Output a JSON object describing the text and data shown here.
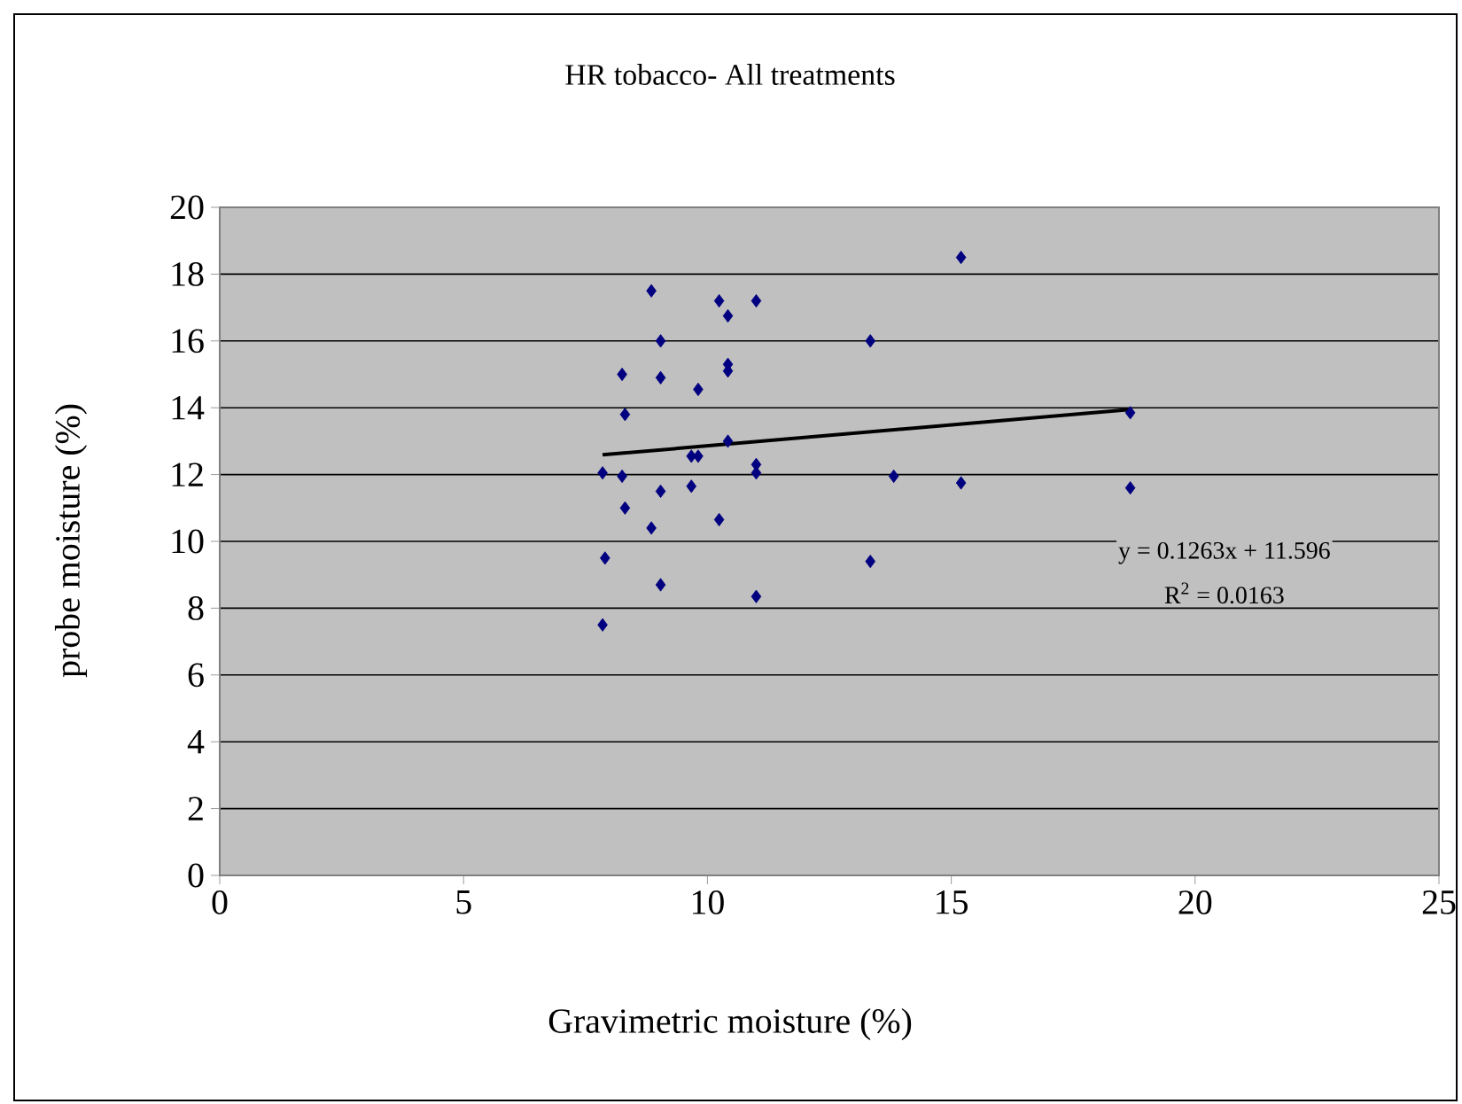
{
  "chart_data": {
    "type": "scatter",
    "title": "HR tobacco- All treatments",
    "xlabel": "Gravimetric moisture (%)",
    "ylabel": "probe moisture (%)",
    "xlim": [
      0,
      25
    ],
    "xticks": [
      0,
      5,
      10,
      15,
      20,
      25
    ],
    "ylim": [
      0,
      20
    ],
    "yticks": [
      0,
      2,
      4,
      6,
      8,
      10,
      12,
      14,
      16,
      18,
      20
    ],
    "grid": "y",
    "marker": "diamond",
    "series": [
      {
        "color": "#000080",
        "x": [
          8.85,
          10.24,
          11.0,
          10.42,
          9.04,
          13.34,
          8.25,
          9.04,
          10.42,
          10.42,
          9.81,
          8.31,
          10.42,
          9.67,
          9.81,
          11.0,
          11.0,
          7.85,
          8.25,
          13.82,
          9.04,
          9.67,
          8.31,
          8.85,
          10.24,
          7.9,
          13.34,
          9.04,
          11.0,
          7.85,
          15.2,
          18.67,
          15.2,
          18.67
        ],
        "values": [
          17.5,
          17.2,
          17.2,
          16.75,
          16.0,
          16.0,
          15.0,
          14.9,
          15.3,
          15.1,
          14.55,
          13.8,
          13.0,
          12.55,
          12.55,
          12.3,
          12.05,
          12.05,
          11.95,
          11.95,
          11.5,
          11.65,
          11.0,
          10.4,
          10.65,
          9.5,
          9.4,
          8.7,
          8.35,
          7.5,
          18.5,
          13.85,
          11.75,
          11.6
        ]
      },
      {
        "type": "line",
        "color": "#000000",
        "marker": "none",
        "line_style": "solid",
        "x": [
          7.85,
          18.67
        ],
        "values": [
          12.59,
          13.95
        ]
      }
    ],
    "annotations": [
      "y = 0.1263x + 11.596",
      "R$^{2}$ = 0.0163"
    ]
  }
}
